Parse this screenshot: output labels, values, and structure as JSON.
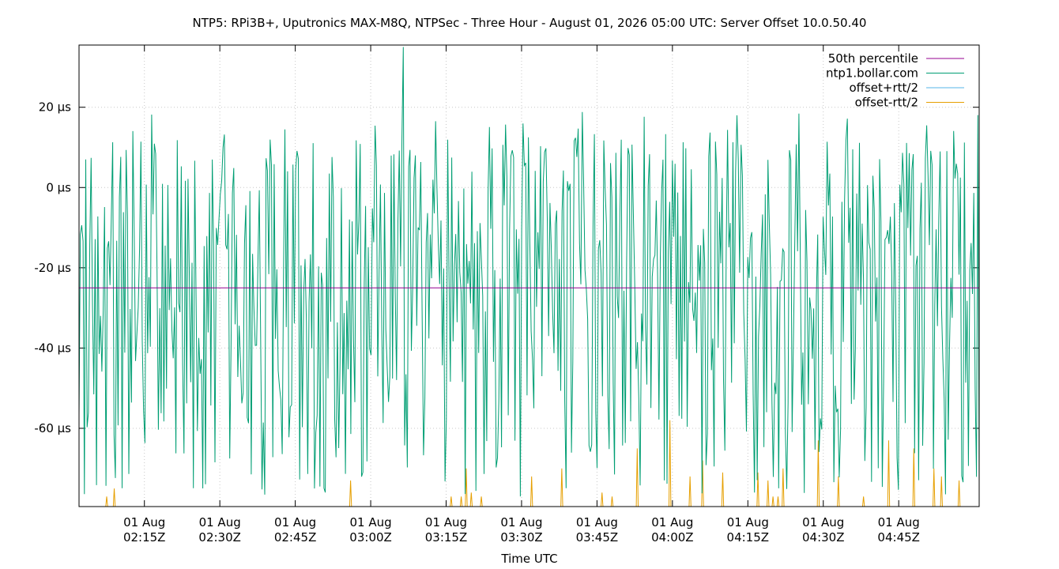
{
  "chart_data": {
    "type": "line",
    "title": "NTP5: RPi3B+, Uputronics MAX-M8Q, NTPSec - Three Hour - August 01, 2026 05:00 UTC: Server Offset 10.0.50.40",
    "xlabel": "Time UTC",
    "ylabel": "",
    "ylim": [
      -79.5,
      35.5
    ],
    "xlim": [
      "2026-08-01T02:02:00Z",
      "2026-08-01T05:01:00Z"
    ],
    "y_ticks": [
      {
        "value": 20,
        "label": "20 µs"
      },
      {
        "value": 0,
        "label": "0 µs"
      },
      {
        "value": -20,
        "label": "-20 µs"
      },
      {
        "value": -40,
        "label": "-40 µs"
      },
      {
        "value": -60,
        "label": "-60 µs"
      }
    ],
    "x_ticks": [
      {
        "time": "2026-08-01T02:15:00Z",
        "line1": "01 Aug",
        "line2": "02:15Z"
      },
      {
        "time": "2026-08-01T02:30:00Z",
        "line1": "01 Aug",
        "line2": "02:30Z"
      },
      {
        "time": "2026-08-01T02:45:00Z",
        "line1": "01 Aug",
        "line2": "02:45Z"
      },
      {
        "time": "2026-08-01T03:00:00Z",
        "line1": "01 Aug",
        "line2": "03:00Z"
      },
      {
        "time": "2026-08-01T03:15:00Z",
        "line1": "01 Aug",
        "line2": "03:15Z"
      },
      {
        "time": "2026-08-01T03:30:00Z",
        "line1": "01 Aug",
        "line2": "03:30Z"
      },
      {
        "time": "2026-08-01T03:45:00Z",
        "line1": "01 Aug",
        "line2": "03:45Z"
      },
      {
        "time": "2026-08-01T04:00:00Z",
        "line1": "01 Aug",
        "line2": "04:00Z"
      },
      {
        "time": "2026-08-01T04:15:00Z",
        "line1": "01 Aug",
        "line2": "04:15Z"
      },
      {
        "time": "2026-08-01T04:30:00Z",
        "line1": "01 Aug",
        "line2": "04:30Z"
      },
      {
        "time": "2026-08-01T04:45:00Z",
        "line1": "01 Aug",
        "line2": "04:45Z"
      }
    ],
    "grid": true,
    "legend_position": "top-right",
    "series": [
      {
        "name": "50th percentile",
        "color": "#94008f",
        "kind": "constant",
        "value": -25
      },
      {
        "name": "ntp1.bollar.com",
        "color": "#009e73",
        "kind": "dense",
        "note_points": "approx. one sample every 16 s (~670 samples)",
        "value_range": [
          -79,
          35
        ],
        "median": -25,
        "max_value": 35,
        "max_time": "2026-08-01T03:06:30Z"
      },
      {
        "name": "offset+rtt/2",
        "color": "#56b4e9",
        "kind": "offscale"
      },
      {
        "name": "offset-rtt/2",
        "color": "#e69f00",
        "kind": "spikes",
        "baseline": -79.5,
        "spikes": [
          {
            "time": "2026-08-01T02:07:30Z",
            "value": -77
          },
          {
            "time": "2026-08-01T02:09:00Z",
            "value": -75
          },
          {
            "time": "2026-08-01T02:56:00Z",
            "value": -73
          },
          {
            "time": "2026-08-01T03:16:00Z",
            "value": -77
          },
          {
            "time": "2026-08-01T03:18:00Z",
            "value": -77
          },
          {
            "time": "2026-08-01T03:19:00Z",
            "value": -70
          },
          {
            "time": "2026-08-01T03:20:00Z",
            "value": -76
          },
          {
            "time": "2026-08-01T03:22:00Z",
            "value": -77
          },
          {
            "time": "2026-08-01T03:32:00Z",
            "value": -72
          },
          {
            "time": "2026-08-01T03:38:00Z",
            "value": -70
          },
          {
            "time": "2026-08-01T03:46:00Z",
            "value": -76
          },
          {
            "time": "2026-08-01T03:48:00Z",
            "value": -77
          },
          {
            "time": "2026-08-01T03:53:00Z",
            "value": -65
          },
          {
            "time": "2026-08-01T03:59:30Z",
            "value": -58
          },
          {
            "time": "2026-08-01T04:03:30Z",
            "value": -72
          },
          {
            "time": "2026-08-01T04:06:00Z",
            "value": -68
          },
          {
            "time": "2026-08-01T04:10:00Z",
            "value": -71
          },
          {
            "time": "2026-08-01T04:17:00Z",
            "value": -71
          },
          {
            "time": "2026-08-01T04:19:00Z",
            "value": -73
          },
          {
            "time": "2026-08-01T04:20:00Z",
            "value": -77
          },
          {
            "time": "2026-08-01T04:21:00Z",
            "value": -77
          },
          {
            "time": "2026-08-01T04:22:00Z",
            "value": -70
          },
          {
            "time": "2026-08-01T04:29:00Z",
            "value": -63
          },
          {
            "time": "2026-08-01T04:33:00Z",
            "value": -72
          },
          {
            "time": "2026-08-01T04:38:00Z",
            "value": -77
          },
          {
            "time": "2026-08-01T04:43:00Z",
            "value": -63
          },
          {
            "time": "2026-08-01T04:48:00Z",
            "value": -65
          },
          {
            "time": "2026-08-01T04:52:00Z",
            "value": -70
          },
          {
            "time": "2026-08-01T04:53:30Z",
            "value": -72
          },
          {
            "time": "2026-08-01T04:57:00Z",
            "value": -73
          }
        ]
      }
    ]
  }
}
